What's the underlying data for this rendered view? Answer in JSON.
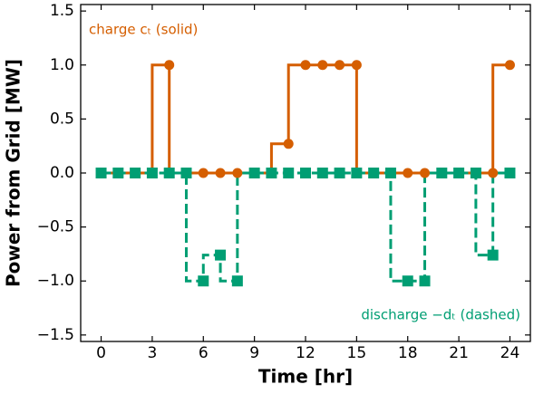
{
  "chart_data": {
    "type": "step",
    "xlabel": "Time [hr]",
    "ylabel": "Power from Grid [MW]",
    "annotations": [
      "charge cₜ (solid)",
      "discharge −dₜ (dashed)"
    ],
    "x": [
      0,
      1,
      2,
      3,
      4,
      5,
      6,
      7,
      8,
      9,
      10,
      11,
      12,
      13,
      14,
      15,
      16,
      17,
      18,
      19,
      20,
      21,
      22,
      23,
      24
    ],
    "series": [
      {
        "name": "charge",
        "color": "#d55e00",
        "dashed": false,
        "marker": "circle",
        "values": [
          0,
          0,
          0,
          0,
          1,
          0,
          0,
          0,
          0,
          0,
          0,
          0.27,
          1,
          1,
          1,
          1,
          0,
          0,
          0,
          0,
          0,
          0,
          0,
          0,
          1
        ]
      },
      {
        "name": "discharge",
        "color": "#009e73",
        "dashed": true,
        "marker": "square",
        "values": [
          0,
          0,
          0,
          0,
          0,
          0,
          -1,
          -0.76,
          -1,
          0,
          0,
          0,
          0,
          0,
          0,
          0,
          0,
          0,
          -1,
          -1,
          0,
          0,
          0,
          -0.76,
          0
        ]
      }
    ],
    "xlim": [
      -1.2,
      25.2
    ],
    "xticks": [
      0,
      3,
      6,
      9,
      12,
      15,
      18,
      21,
      24
    ],
    "ylim": [
      -1.56,
      1.56
    ],
    "yticks": [
      {
        "value": -1.5,
        "label": "−1.5"
      },
      {
        "value": -1,
        "label": "−1.0"
      },
      {
        "value": -0.5,
        "label": "−0.5"
      },
      {
        "value": 0,
        "label": "0.0"
      },
      {
        "value": 0.5,
        "label": "0.5"
      },
      {
        "value": 1,
        "label": "1.0"
      },
      {
        "value": 1.5,
        "label": "1.5"
      }
    ]
  }
}
